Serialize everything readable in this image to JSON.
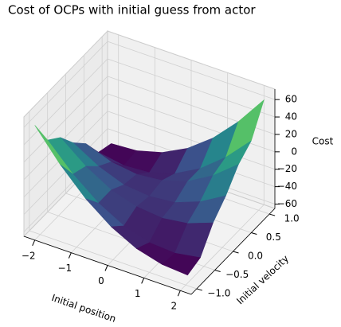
{
  "chart_data": {
    "type": "surface",
    "title": "Cost of OCPs with initial guess from actor",
    "xlabel": "Initial position",
    "ylabel": "Initial velocity",
    "zlabel": "Cost",
    "x": [
      -2.1,
      -1.4,
      -0.7,
      0,
      0.7,
      1.4,
      2.1
    ],
    "y": [
      -1.05,
      -0.7,
      -0.35,
      0,
      0.35,
      0.7,
      1.05
    ],
    "z": [
      [
        61,
        26,
        -3,
        -25,
        -40,
        -48,
        -50
      ],
      [
        29,
        0,
        -23,
        -39,
        -48,
        -50,
        -45
      ],
      [
        17,
        -6,
        -23,
        -32,
        -35,
        -31,
        -20
      ],
      [
        -4,
        -21,
        -32,
        -35,
        -32,
        -21,
        -4
      ],
      [
        -20,
        -31,
        -35,
        -32,
        -23,
        -6,
        17
      ],
      [
        -45,
        -50,
        -48,
        -39,
        -23,
        0,
        29
      ],
      [
        -50,
        -48,
        -40,
        -25,
        -3,
        26,
        61
      ]
    ],
    "colormap": "viridis",
    "xlim": [
      -2.3,
      2.3
    ],
    "ylim": [
      -1.15,
      1.15
    ],
    "zlim": [
      -65,
      72
    ],
    "xticks": [
      {
        "value": -2,
        "label": "−2"
      },
      {
        "value": -1,
        "label": "−1"
      },
      0,
      1,
      2
    ],
    "yticks": [
      {
        "value": -1,
        "label": "−1.0"
      },
      {
        "value": -0.5,
        "label": "−0.5"
      },
      {
        "value": 0,
        "label": "0.0"
      },
      0.5,
      {
        "value": 1,
        "label": "1.0"
      }
    ],
    "zticks": [
      {
        "value": -60,
        "label": "−60"
      },
      {
        "value": -40,
        "label": "−40"
      },
      {
        "value": -20,
        "label": "−20"
      },
      0,
      20,
      40,
      60
    ],
    "grid": true
  }
}
